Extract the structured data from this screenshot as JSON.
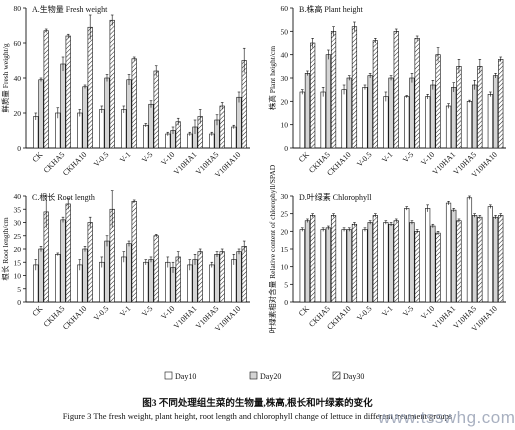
{
  "series_names": [
    "Day10",
    "Day20",
    "Day30"
  ],
  "categories": [
    "CK",
    "CKHA5",
    "CKHA10",
    "V-0.5",
    "V-1",
    "V-5",
    "V-10",
    "V10HA1",
    "V10HA5",
    "V10HA10"
  ],
  "chart_data": [
    {
      "type": "bar",
      "panel_label": "A.生物量 Fresh weight",
      "ylabel": "鲜质量 Fresh weight/g",
      "ylim": [
        0,
        80
      ],
      "yticks": [
        0,
        20,
        40,
        60,
        80
      ],
      "categories": [
        "CK",
        "CKHA5",
        "CKHA10",
        "V-0.5",
        "V-1",
        "V-5",
        "V-10",
        "V10HA1",
        "V10HA5",
        "V10HA10"
      ],
      "series": [
        {
          "name": "Day10",
          "values": [
            18,
            20,
            20,
            22,
            22,
            13,
            8,
            8,
            8,
            12
          ],
          "errors": [
            2,
            3,
            2,
            2,
            2,
            1,
            1,
            1,
            1,
            1
          ]
        },
        {
          "name": "Day20",
          "values": [
            39,
            48,
            35,
            40,
            39,
            25,
            10,
            12,
            16,
            29
          ],
          "errors": [
            1,
            4,
            1,
            2,
            3,
            2,
            2,
            4,
            3,
            3
          ]
        },
        {
          "name": "Day30",
          "values": [
            67,
            64,
            69,
            73,
            51,
            44,
            15,
            18,
            24,
            50
          ],
          "errors": [
            1,
            1,
            7,
            3,
            1,
            3,
            2,
            4,
            2,
            7
          ]
        }
      ]
    },
    {
      "type": "bar",
      "panel_label": "B.株高 Plant height",
      "ylabel": "株高 Plant height/cm",
      "ylim": [
        0,
        60
      ],
      "yticks": [
        0,
        10,
        20,
        30,
        40,
        50,
        60
      ],
      "categories": [
        "CK",
        "CKHA5",
        "CKHA10",
        "V-0.5",
        "V-1",
        "V-5",
        "V-10",
        "V10HA1",
        "V10HA5",
        "V10HA10"
      ],
      "series": [
        {
          "name": "Day10",
          "values": [
            24,
            24,
            25,
            26,
            22,
            22,
            22,
            18,
            20,
            23
          ],
          "errors": [
            1,
            2,
            2,
            1,
            2,
            0.5,
            1,
            1,
            0.5,
            1
          ]
        },
        {
          "name": "Day20",
          "values": [
            32,
            40,
            30,
            31,
            30,
            30,
            27,
            26,
            27,
            31
          ],
          "errors": [
            1,
            2,
            1,
            1,
            1,
            2,
            2,
            2,
            2,
            1
          ]
        },
        {
          "name": "Day30",
          "values": [
            45,
            50,
            52,
            46,
            50,
            47,
            40,
            35,
            35,
            38
          ],
          "errors": [
            2,
            2,
            2,
            1,
            1,
            1,
            3,
            3,
            3,
            1
          ]
        }
      ]
    },
    {
      "type": "bar",
      "panel_label": "C.根长 Root length",
      "ylabel": "根长 Root length/cm",
      "ylim": [
        0,
        40
      ],
      "yticks": [
        0,
        5,
        10,
        15,
        20,
        25,
        30,
        35,
        40
      ],
      "categories": [
        "CK",
        "CKHA5",
        "CKHA10",
        "V-0.5",
        "V-1",
        "V-5",
        "V-10",
        "V10HA1",
        "V10HA5",
        "V10HA10"
      ],
      "series": [
        {
          "name": "Day10",
          "values": [
            14,
            18,
            14,
            15,
            17,
            15,
            15,
            14,
            14,
            16
          ],
          "errors": [
            2,
            0.5,
            2,
            2,
            2,
            1,
            2,
            2,
            1,
            2
          ]
        },
        {
          "name": "Day20",
          "values": [
            20,
            31,
            20,
            23,
            22,
            16,
            13,
            16,
            18,
            19
          ],
          "errors": [
            1,
            1,
            1,
            2,
            1,
            1,
            2,
            2,
            1,
            1
          ]
        },
        {
          "name": "Day30",
          "values": [
            34,
            37,
            30,
            35,
            38,
            25,
            17,
            19,
            19,
            21
          ],
          "errors": [
            6,
            2,
            2,
            7,
            0.5,
            0.5,
            2,
            1,
            1,
            2
          ]
        }
      ]
    },
    {
      "type": "bar",
      "panel_label": "D.叶绿素 Chlorophyll",
      "ylabel": "叶绿素相对含量 Relative content of chlorophyll/SPAD",
      "ylim": [
        0,
        30
      ],
      "yticks": [
        0,
        5,
        10,
        15,
        20,
        25,
        30
      ],
      "categories": [
        "CK",
        "CKHA5",
        "CKHA10",
        "V-0.5",
        "V-1",
        "V-5",
        "V-10",
        "V10HA1",
        "V10HA5",
        "V10HA10"
      ],
      "series": [
        {
          "name": "Day10",
          "values": [
            20.5,
            20.5,
            20.5,
            20.5,
            22.5,
            26.5,
            26.5,
            28,
            29.5,
            27
          ],
          "errors": [
            0.5,
            0.5,
            0.5,
            0.5,
            0.5,
            0.5,
            1,
            0.5,
            0.5,
            0.5
          ]
        },
        {
          "name": "Day20",
          "values": [
            23,
            21,
            20.5,
            22.5,
            22,
            22.5,
            21.5,
            26,
            24.5,
            24
          ],
          "errors": [
            0.5,
            0.5,
            0.5,
            0.5,
            0.5,
            0.5,
            0.5,
            0.5,
            0.5,
            0.5
          ]
        },
        {
          "name": "Day30",
          "values": [
            24.5,
            24.5,
            22,
            24.5,
            23,
            20,
            19.5,
            23,
            24,
            24.5
          ],
          "errors": [
            0.5,
            0.5,
            0.5,
            0.5,
            0.5,
            0.5,
            0.5,
            0.5,
            0.5,
            0.5
          ]
        }
      ]
    }
  ],
  "caption_cn": "图3 不同处理组生菜的生物量,株高,根长和叶绿素的变化",
  "caption_en": "Figure 3 The fresh weight, plant height, root length and chlorophyll change of lettuce in different treatment groups",
  "watermark": "www.tsswhg.com"
}
